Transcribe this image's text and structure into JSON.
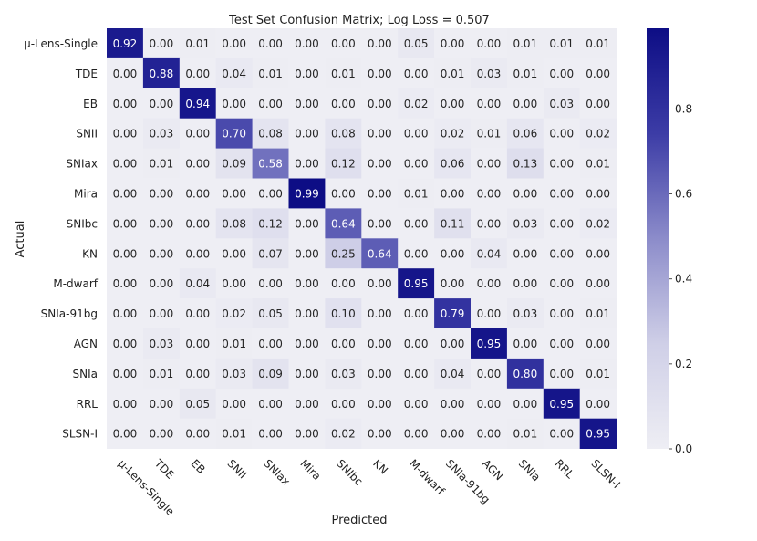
{
  "chart_data": {
    "type": "heatmap",
    "title": "Test Set Confusion Matrix; Log Loss = 0.507",
    "xlabel": "Predicted",
    "ylabel": "Actual",
    "x_tick_labels": [
      "μ-Lens-Single",
      "TDE",
      "EB",
      "SNII",
      "SNIax",
      "Mira",
      "SNIbc",
      "KN",
      "M-dwarf",
      "SNIa-91bg",
      "AGN",
      "SNIa",
      "RRL",
      "SLSN-I"
    ],
    "y_tick_labels": [
      "μ-Lens-Single",
      "TDE",
      "EB",
      "SNII",
      "SNIax",
      "Mira",
      "SNIbc",
      "KN",
      "M-dwarf",
      "SNIa-91bg",
      "AGN",
      "SNIa",
      "RRL",
      "SLSN-I"
    ],
    "values": [
      [
        0.92,
        0.0,
        0.01,
        0.0,
        0.0,
        0.0,
        0.0,
        0.0,
        0.05,
        0.0,
        0.0,
        0.01,
        0.01,
        0.01
      ],
      [
        0.0,
        0.88,
        0.0,
        0.04,
        0.01,
        0.0,
        0.01,
        0.0,
        0.0,
        0.01,
        0.03,
        0.01,
        0.0,
        0.0
      ],
      [
        0.0,
        0.0,
        0.94,
        0.0,
        0.0,
        0.0,
        0.0,
        0.0,
        0.02,
        0.0,
        0.0,
        0.0,
        0.03,
        0.0
      ],
      [
        0.0,
        0.03,
        0.0,
        0.7,
        0.08,
        0.0,
        0.08,
        0.0,
        0.0,
        0.02,
        0.01,
        0.06,
        0.0,
        0.02
      ],
      [
        0.0,
        0.01,
        0.0,
        0.09,
        0.58,
        0.0,
        0.12,
        0.0,
        0.0,
        0.06,
        0.0,
        0.13,
        0.0,
        0.01
      ],
      [
        0.0,
        0.0,
        0.0,
        0.0,
        0.0,
        0.99,
        0.0,
        0.0,
        0.01,
        0.0,
        0.0,
        0.0,
        0.0,
        0.0
      ],
      [
        0.0,
        0.0,
        0.0,
        0.08,
        0.12,
        0.0,
        0.64,
        0.0,
        0.0,
        0.11,
        0.0,
        0.03,
        0.0,
        0.02
      ],
      [
        0.0,
        0.0,
        0.0,
        0.0,
        0.07,
        0.0,
        0.25,
        0.64,
        0.0,
        0.0,
        0.04,
        0.0,
        0.0,
        0.0
      ],
      [
        0.0,
        0.0,
        0.04,
        0.0,
        0.0,
        0.0,
        0.0,
        0.0,
        0.95,
        0.0,
        0.0,
        0.0,
        0.0,
        0.0
      ],
      [
        0.0,
        0.0,
        0.0,
        0.02,
        0.05,
        0.0,
        0.1,
        0.0,
        0.0,
        0.79,
        0.0,
        0.03,
        0.0,
        0.01
      ],
      [
        0.0,
        0.03,
        0.0,
        0.01,
        0.0,
        0.0,
        0.0,
        0.0,
        0.0,
        0.0,
        0.95,
        0.0,
        0.0,
        0.0
      ],
      [
        0.0,
        0.01,
        0.0,
        0.03,
        0.09,
        0.0,
        0.03,
        0.0,
        0.0,
        0.04,
        0.0,
        0.8,
        0.0,
        0.01
      ],
      [
        0.0,
        0.0,
        0.05,
        0.0,
        0.0,
        0.0,
        0.0,
        0.0,
        0.0,
        0.0,
        0.0,
        0.0,
        0.95,
        0.0
      ],
      [
        0.0,
        0.0,
        0.0,
        0.01,
        0.0,
        0.0,
        0.02,
        0.0,
        0.0,
        0.0,
        0.0,
        0.01,
        0.0,
        0.95
      ]
    ],
    "colorbar": {
      "range": [
        0.0,
        0.99
      ],
      "ticks": [
        0.0,
        0.2,
        0.4,
        0.6,
        0.8
      ],
      "tick_labels": [
        "0.0",
        "0.2",
        "0.4",
        "0.6",
        "0.8"
      ],
      "colors": [
        "#eeeef4",
        "#cfcfe7",
        "#8c8cca",
        "#3c3ca6",
        "#0d0d85"
      ]
    }
  }
}
